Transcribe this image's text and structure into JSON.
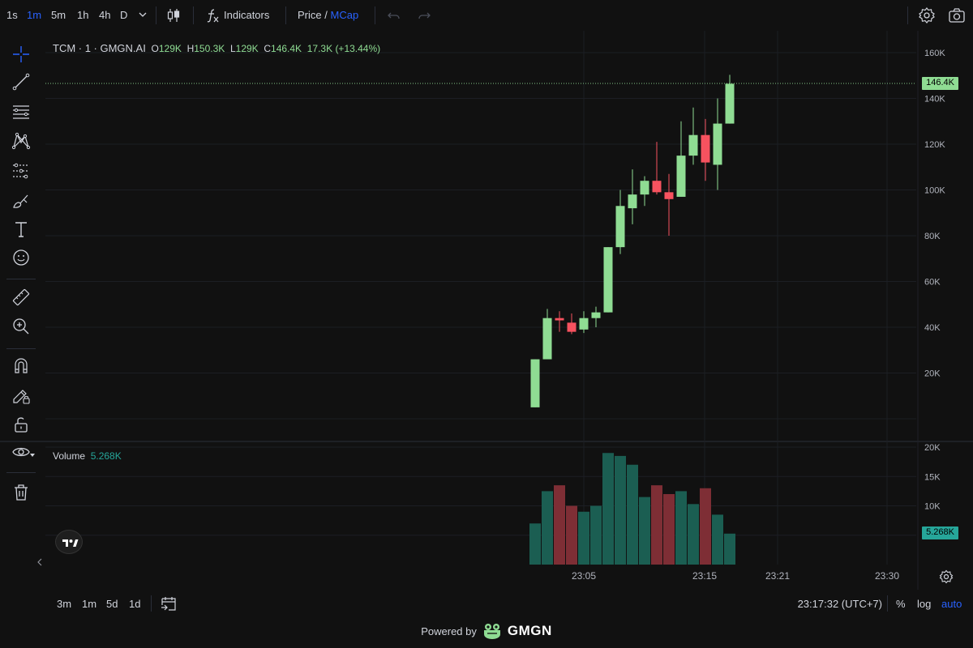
{
  "toolbar": {
    "timeframes": [
      "1s",
      "1m",
      "5m",
      "1h",
      "4h",
      "D"
    ],
    "active_timeframe": "1m",
    "indicators_label": "Indicators",
    "price_label": "Price",
    "slash": "/",
    "mcap_label": "MCap"
  },
  "legend": {
    "symbol": "TCM · 1 · GMGN.AI",
    "open_key": "O",
    "open": "129K",
    "high_key": "H",
    "high": "150.3K",
    "low_key": "L",
    "low": "129K",
    "close_key": "C",
    "close": "146.4K",
    "change": "17.3K",
    "change_pct": "(+13.44%)"
  },
  "volume_legend": {
    "label": "Volume",
    "value": "5.268K"
  },
  "price_axis": [
    "160K",
    "140K",
    "120K",
    "100K",
    "80K",
    "60K",
    "40K",
    "20K"
  ],
  "volume_axis": [
    "20K",
    "15K",
    "10K"
  ],
  "last_price_tag": "146.4K",
  "last_volume_tag": "5.268K",
  "time_axis": [
    "23:05",
    "23:15",
    "23:21",
    "23:30"
  ],
  "bottom": {
    "ranges": [
      "3m",
      "1m",
      "5d",
      "1d"
    ],
    "clock": "23:17:32 (UTC+7)",
    "percent": "%",
    "log": "log",
    "auto": "auto"
  },
  "footer": {
    "powered_by": "Powered by",
    "brand": "GMGN"
  },
  "colors": {
    "up": "#8fdc93",
    "down": "#f7525f",
    "vol_up": "#1b5e52",
    "vol_down": "#7e2e35",
    "accent": "#2962ff",
    "background": "#111111"
  },
  "chart_data": {
    "type": "candlestick",
    "price_range": [
      0,
      165000
    ],
    "volume_range": [
      0,
      20000
    ],
    "time_range": [
      "23:00",
      "23:31"
    ],
    "candles": [
      {
        "t": "23:00",
        "o": 5000,
        "h": 26000,
        "l": 5000,
        "c": 26000,
        "v": 7000
      },
      {
        "t": "23:01",
        "o": 26000,
        "h": 48000,
        "l": 26000,
        "c": 44000,
        "v": 12500
      },
      {
        "t": "23:02",
        "o": 44000,
        "h": 47000,
        "l": 38000,
        "c": 43000,
        "v": 13500
      },
      {
        "t": "23:03",
        "o": 42000,
        "h": 46000,
        "l": 37000,
        "c": 38000,
        "v": 10000
      },
      {
        "t": "23:04",
        "o": 39000,
        "h": 47000,
        "l": 37500,
        "c": 44000,
        "v": 9000
      },
      {
        "t": "23:05",
        "o": 44000,
        "h": 49000,
        "l": 40000,
        "c": 46500,
        "v": 10000
      },
      {
        "t": "23:06",
        "o": 46500,
        "h": 75000,
        "l": 46500,
        "c": 75000,
        "v": 19000
      },
      {
        "t": "23:07",
        "o": 75000,
        "h": 100000,
        "l": 72000,
        "c": 93000,
        "v": 18500
      },
      {
        "t": "23:08",
        "o": 92000,
        "h": 109000,
        "l": 85000,
        "c": 98000,
        "v": 17000
      },
      {
        "t": "23:09",
        "o": 98000,
        "h": 106000,
        "l": 93000,
        "c": 104000,
        "v": 11500
      },
      {
        "t": "23:10",
        "o": 104000,
        "h": 121000,
        "l": 98000,
        "c": 99000,
        "v": 13500
      },
      {
        "t": "23:11",
        "o": 99000,
        "h": 107000,
        "l": 80000,
        "c": 96000,
        "v": 12000
      },
      {
        "t": "23:12",
        "o": 97000,
        "h": 130000,
        "l": 97000,
        "c": 115000,
        "v": 12500
      },
      {
        "t": "23:13",
        "o": 115000,
        "h": 136000,
        "l": 111000,
        "c": 124000,
        "v": 10300
      },
      {
        "t": "23:14",
        "o": 124000,
        "h": 131000,
        "l": 104000,
        "c": 112000,
        "v": 13000
      },
      {
        "t": "23:15",
        "o": 111000,
        "h": 140000,
        "l": 100000,
        "c": 129000,
        "v": 8500
      },
      {
        "t": "23:16",
        "o": 129000,
        "h": 150300,
        "l": 129000,
        "c": 146400,
        "v": 5268
      }
    ]
  }
}
